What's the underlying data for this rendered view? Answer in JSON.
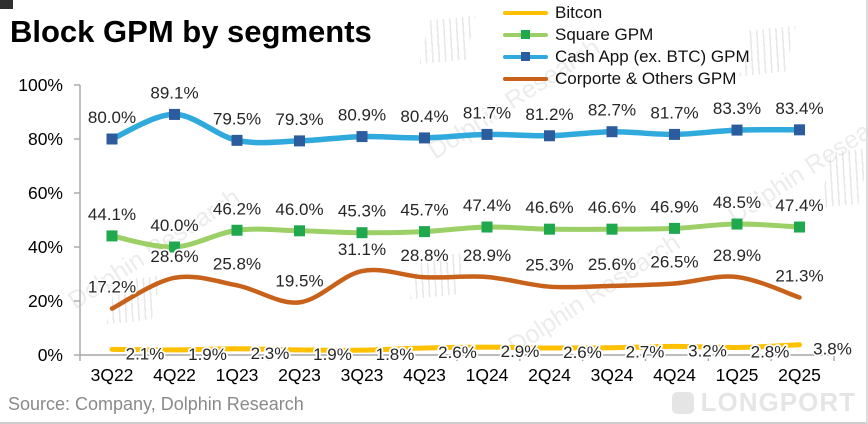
{
  "title": "Block GPM by segments",
  "source": "Source: Company, Dolphin Research",
  "watermarks": {
    "diagonal_text": "Dolphin Research",
    "brand_text": "LONGPORT"
  },
  "chart_data": {
    "type": "line",
    "title": "Block GPM by segments",
    "categories": [
      "3Q22",
      "4Q22",
      "1Q23",
      "2Q23",
      "3Q23",
      "4Q23",
      "1Q24",
      "2Q24",
      "3Q24",
      "4Q24",
      "1Q25",
      "2Q25"
    ],
    "xlabel": "",
    "ylabel": "",
    "ylim": [
      0,
      100
    ],
    "y_tick_labels": [
      "0%",
      "20%",
      "40%",
      "60%",
      "80%",
      "100%"
    ],
    "grid": false,
    "legend_position": "top-right",
    "smoothed_lines": true,
    "axis_color": "#a6a6a6",
    "series": [
      {
        "name": "Bitcon",
        "color": "#FFC000",
        "marker": null,
        "width": 5,
        "label_placement": "right-below",
        "values": [
          2.1,
          1.9,
          2.3,
          1.9,
          1.8,
          2.6,
          2.9,
          2.6,
          2.7,
          3.2,
          2.8,
          3.8
        ],
        "labels": [
          "2.1%",
          "1.9%",
          "2.3%",
          "1.9%",
          "1.8%",
          "2.6%",
          "2.9%",
          "2.6%",
          "2.7%",
          "3.2%",
          "2.8%",
          "3.8%"
        ]
      },
      {
        "name": "Square GPM",
        "color": "#9CCF66",
        "marker": "#1FA84D",
        "width": 5,
        "label_placement": "above",
        "values": [
          44.1,
          40.0,
          46.2,
          46.0,
          45.3,
          45.7,
          47.4,
          46.6,
          46.6,
          46.9,
          48.5,
          47.4
        ],
        "labels": [
          "44.1%",
          "40.0%",
          "46.2%",
          "46.0%",
          "45.3%",
          "45.7%",
          "47.4%",
          "46.6%",
          "46.6%",
          "46.9%",
          "48.5%",
          "47.4%"
        ]
      },
      {
        "name": "Cash App (ex. BTC) GPM",
        "color": "#30A9DC",
        "marker": "#2D5C9E",
        "width": 5.5,
        "label_placement": "above",
        "values": [
          80.0,
          89.1,
          79.5,
          79.3,
          80.9,
          80.4,
          81.7,
          81.2,
          82.7,
          81.7,
          83.3,
          83.4
        ],
        "labels": [
          "80.0%",
          "89.1%",
          "79.5%",
          "79.3%",
          "80.9%",
          "80.4%",
          "81.7%",
          "81.2%",
          "82.7%",
          "81.7%",
          "83.3%",
          "83.4%"
        ]
      },
      {
        "name": "Corporte & Others GPM",
        "color": "#C8621B",
        "marker": null,
        "width": 4.5,
        "label_placement": "above",
        "values": [
          17.2,
          28.6,
          25.8,
          19.5,
          31.1,
          28.8,
          28.9,
          25.3,
          25.6,
          26.5,
          28.9,
          21.3
        ],
        "labels": [
          "17.2%",
          "28.6%",
          "25.8%",
          "19.5%",
          "31.1%",
          "28.8%",
          "28.9%",
          "25.3%",
          "25.6%",
          "26.5%",
          "28.9%",
          "21.3%"
        ]
      }
    ]
  }
}
